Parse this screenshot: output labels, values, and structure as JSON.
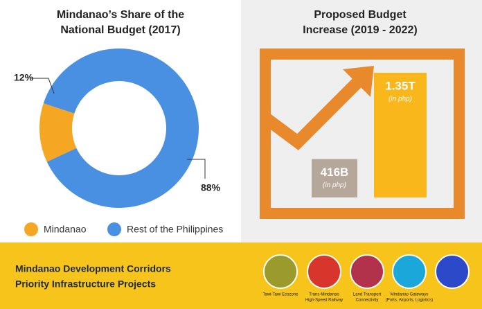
{
  "chart_data": [
    {
      "type": "pie",
      "title": [
        "Mindanao’s Share of the",
        "National Budget (2017)"
      ],
      "categories": [
        "Mindanao",
        "Rest of the Philippines"
      ],
      "values": [
        12,
        88
      ],
      "value_labels": [
        "12%",
        "88%"
      ],
      "colors": [
        "#f5a623",
        "#4a90e2"
      ],
      "donut": true
    },
    {
      "type": "bar",
      "title": [
        "Proposed Budget",
        "Increase (2019 - 2022)"
      ],
      "values": [
        416000000000,
        1350000000000
      ],
      "value_labels": [
        "416B",
        "1.35T"
      ],
      "unit_labels": [
        "(in php)",
        "(in php)"
      ],
      "colors": [
        "#b5a89b",
        "#f9b71c"
      ],
      "ylim": [
        0,
        1350000000000
      ]
    }
  ],
  "footer": {
    "title": [
      "Mindanao Development Corridors",
      "Priority Infrastructure Projects"
    ],
    "icons": [
      {
        "label": [
          "Tawi-Tawi Ecozone"
        ],
        "color": "#9b9a2c"
      },
      {
        "label": [
          "Trans-Mindanao",
          "High-Speed Railway"
        ],
        "color": "#d8352c"
      },
      {
        "label": [
          "Land Transport",
          "Connectivity"
        ],
        "color": "#b2314b"
      },
      {
        "label": [
          "Mindanao Gateways",
          "(Ports, Airports, Logistics)"
        ],
        "color": "#1ba7d9"
      },
      {
        "label": [],
        "color": "#2b49c9"
      }
    ]
  }
}
